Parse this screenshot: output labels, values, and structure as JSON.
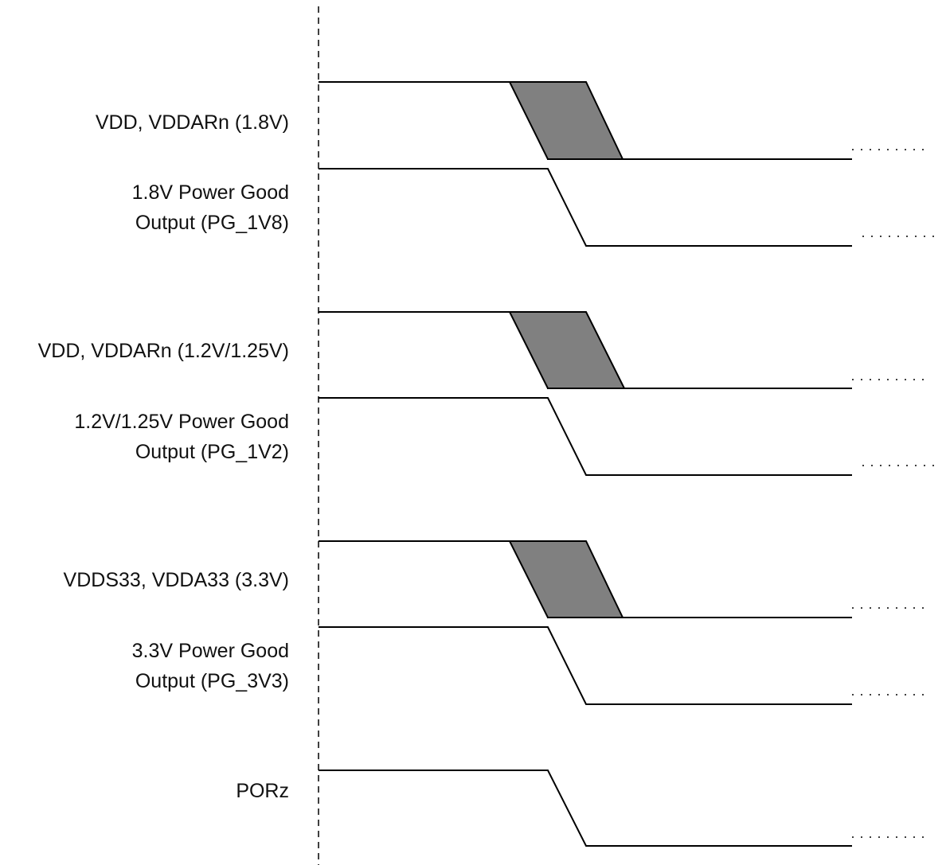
{
  "diagram": {
    "signals": [
      {
        "id": "vdd-1v8",
        "label_lines": [
          "VDD, VDDARn (1.8V)"
        ],
        "kind": "supply"
      },
      {
        "id": "pg-1v8",
        "label_lines": [
          "1.8V Power Good",
          "Output (PG_1V8)"
        ],
        "kind": "power-good"
      },
      {
        "id": "vdd-1v2",
        "label_lines": [
          "VDD, VDDARn (1.2V/1.25V)"
        ],
        "kind": "supply"
      },
      {
        "id": "pg-1v2",
        "label_lines": [
          "1.2V/1.25V Power Good",
          "Output (PG_1V2)"
        ],
        "kind": "power-good"
      },
      {
        "id": "vdd-3v3",
        "label_lines": [
          "VDDS33, VDDA33 (3.3V)"
        ],
        "kind": "supply"
      },
      {
        "id": "pg-3v3",
        "label_lines": [
          "3.3V Power Good",
          "Output (PG_3V3)"
        ],
        "kind": "power-good"
      },
      {
        "id": "porz",
        "label_lines": [
          "PORz"
        ],
        "kind": "reset"
      }
    ],
    "colors": {
      "line": "#000000",
      "transition_fill": "#808080",
      "text": "#111111",
      "background": "#ffffff"
    }
  }
}
